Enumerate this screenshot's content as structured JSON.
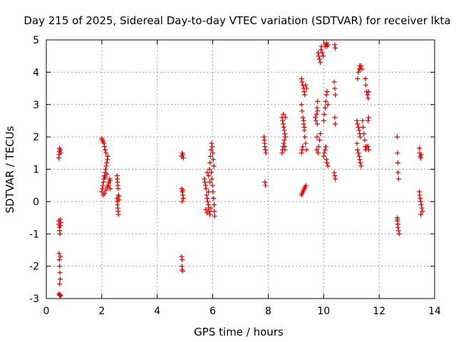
{
  "chart_data": {
    "type": "scatter",
    "title": "Day 215 of 2025, Sidereal Day-to-day VTEC variation (SDTVAR) for receiver lkta",
    "xlabel": "GPS time / hours",
    "ylabel": "SDTVAR / TECUs",
    "xlim": [
      0,
      14
    ],
    "ylim": [
      -3,
      5
    ],
    "xticks": [
      0,
      2,
      4,
      6,
      8,
      10,
      12,
      14
    ],
    "yticks": [
      -3,
      -2,
      -1,
      0,
      1,
      2,
      3,
      4,
      5
    ],
    "grid": true,
    "marker": "+",
    "color": "#e00000",
    "series": [
      {
        "name": "SDTVAR",
        "points": [
          [
            0.45,
            1.35
          ],
          [
            0.46,
            1.45
          ],
          [
            0.47,
            1.55
          ],
          [
            0.48,
            1.65
          ],
          [
            0.5,
            1.6
          ],
          [
            0.52,
            1.5
          ],
          [
            0.45,
            -0.6
          ],
          [
            0.46,
            -0.7
          ],
          [
            0.47,
            -0.8
          ],
          [
            0.48,
            -0.9
          ],
          [
            0.49,
            -1.0
          ],
          [
            0.5,
            -0.75
          ],
          [
            0.52,
            -0.65
          ],
          [
            0.5,
            -0.55
          ],
          [
            0.46,
            -1.6
          ],
          [
            0.47,
            -1.8
          ],
          [
            0.48,
            -2.0
          ],
          [
            0.49,
            -2.2
          ],
          [
            0.5,
            -2.4
          ],
          [
            0.51,
            -1.7
          ],
          [
            0.48,
            -2.55
          ],
          [
            0.45,
            -2.85
          ],
          [
            0.48,
            -2.9
          ],
          [
            0.5,
            -2.88
          ],
          [
            0.52,
            -2.92
          ],
          [
            2.0,
            1.95
          ],
          [
            2.02,
            1.9
          ],
          [
            2.05,
            1.85
          ],
          [
            2.08,
            1.8
          ],
          [
            2.1,
            1.7
          ],
          [
            2.12,
            1.6
          ],
          [
            2.15,
            1.5
          ],
          [
            2.0,
            0.3
          ],
          [
            2.02,
            0.4
          ],
          [
            2.04,
            0.5
          ],
          [
            2.06,
            0.6
          ],
          [
            2.08,
            0.7
          ],
          [
            2.1,
            0.8
          ],
          [
            2.12,
            0.9
          ],
          [
            2.14,
            1.0
          ],
          [
            2.16,
            1.1
          ],
          [
            2.18,
            1.2
          ],
          [
            2.2,
            1.3
          ],
          [
            2.22,
            1.4
          ],
          [
            2.24,
            0.5
          ],
          [
            2.26,
            0.6
          ],
          [
            2.28,
            0.7
          ],
          [
            2.3,
            0.4
          ],
          [
            2.05,
            0.2
          ],
          [
            2.1,
            0.25
          ],
          [
            2.15,
            0.35
          ],
          [
            2.2,
            0.45
          ],
          [
            2.25,
            0.55
          ],
          [
            2.3,
            0.65
          ],
          [
            2.18,
            0.85
          ],
          [
            2.12,
            0.75
          ],
          [
            2.55,
            0.8
          ],
          [
            2.56,
            0.7
          ],
          [
            2.57,
            0.6
          ],
          [
            2.58,
            0.5
          ],
          [
            2.59,
            0.4
          ],
          [
            2.6,
            0.2
          ],
          [
            2.55,
            0.1
          ],
          [
            2.56,
            0.0
          ],
          [
            2.57,
            -0.1
          ],
          [
            2.58,
            -0.2
          ],
          [
            2.59,
            -0.3
          ],
          [
            2.6,
            -0.4
          ],
          [
            2.62,
            0.15
          ],
          [
            2.61,
            0.05
          ],
          [
            4.88,
            1.4
          ],
          [
            4.9,
            1.5
          ],
          [
            4.92,
            1.45
          ],
          [
            4.94,
            1.35
          ],
          [
            4.88,
            0.4
          ],
          [
            4.9,
            0.3
          ],
          [
            4.92,
            0.2
          ],
          [
            4.94,
            0.1
          ],
          [
            4.9,
            0.0
          ],
          [
            4.92,
            0.35
          ],
          [
            4.88,
            -1.7
          ],
          [
            4.9,
            -1.8
          ],
          [
            4.89,
            -2.0
          ],
          [
            4.9,
            -2.1
          ],
          [
            4.91,
            -2.15
          ],
          [
            5.7,
            0.7
          ],
          [
            5.72,
            0.6
          ],
          [
            5.74,
            0.5
          ],
          [
            5.76,
            0.4
          ],
          [
            5.78,
            0.2
          ],
          [
            5.8,
            0.1
          ],
          [
            5.82,
            0.0
          ],
          [
            5.84,
            -0.1
          ],
          [
            5.86,
            -0.2
          ],
          [
            5.88,
            -0.3
          ],
          [
            5.9,
            -0.4
          ],
          [
            5.75,
            -0.25
          ],
          [
            5.8,
            -0.35
          ],
          [
            5.85,
            0.3
          ],
          [
            5.88,
            1.0
          ],
          [
            5.9,
            1.2
          ],
          [
            5.92,
            1.4
          ],
          [
            5.94,
            1.6
          ],
          [
            5.96,
            1.8
          ],
          [
            5.98,
            1.7
          ],
          [
            6.0,
            1.5
          ],
          [
            6.02,
            1.3
          ],
          [
            6.04,
            1.1
          ],
          [
            5.95,
            0.9
          ],
          [
            5.97,
            0.7
          ],
          [
            5.99,
            0.5
          ],
          [
            6.01,
            0.3
          ],
          [
            6.03,
            0.1
          ],
          [
            6.05,
            -0.1
          ],
          [
            6.06,
            -0.3
          ],
          [
            6.07,
            -0.45
          ],
          [
            5.85,
            0.8
          ],
          [
            5.8,
            0.9
          ],
          [
            5.9,
            0.6
          ],
          [
            5.93,
            -0.2
          ],
          [
            7.85,
            2.0
          ],
          [
            7.86,
            1.9
          ],
          [
            7.87,
            1.8
          ],
          [
            7.88,
            1.7
          ],
          [
            7.9,
            1.6
          ],
          [
            7.92,
            1.5
          ],
          [
            7.88,
            0.6
          ],
          [
            7.9,
            0.5
          ],
          [
            8.5,
            2.6
          ],
          [
            8.52,
            2.5
          ],
          [
            8.54,
            2.4
          ],
          [
            8.56,
            2.3
          ],
          [
            8.58,
            2.2
          ],
          [
            8.6,
            2.1
          ],
          [
            8.62,
            2.0
          ],
          [
            8.5,
            1.5
          ],
          [
            8.52,
            1.6
          ],
          [
            8.54,
            1.7
          ],
          [
            8.56,
            1.8
          ],
          [
            8.58,
            1.9
          ],
          [
            8.6,
            1.7
          ],
          [
            8.62,
            2.6
          ],
          [
            8.55,
            2.7
          ],
          [
            8.6,
            1.6
          ],
          [
            9.2,
            3.8
          ],
          [
            9.22,
            3.7
          ],
          [
            9.25,
            3.6
          ],
          [
            9.28,
            3.5
          ],
          [
            9.3,
            3.4
          ],
          [
            9.32,
            3.3
          ],
          [
            9.35,
            3.6
          ],
          [
            9.38,
            3.5
          ],
          [
            9.2,
            3.0
          ],
          [
            9.22,
            2.8
          ],
          [
            9.25,
            2.6
          ],
          [
            9.28,
            2.4
          ],
          [
            9.3,
            2.2
          ],
          [
            9.32,
            2.0
          ],
          [
            9.35,
            1.8
          ],
          [
            9.38,
            1.6
          ],
          [
            9.2,
            1.5
          ],
          [
            9.22,
            1.6
          ],
          [
            9.25,
            1.7
          ],
          [
            9.28,
            2.5
          ],
          [
            9.3,
            2.3
          ],
          [
            9.2,
            0.2
          ],
          [
            9.22,
            0.25
          ],
          [
            9.25,
            0.3
          ],
          [
            9.28,
            0.35
          ],
          [
            9.3,
            0.4
          ],
          [
            9.33,
            0.45
          ],
          [
            9.36,
            0.5
          ],
          [
            9.75,
            1.6
          ],
          [
            9.76,
            2.0
          ],
          [
            9.77,
            2.4
          ],
          [
            9.78,
            2.8
          ],
          [
            9.8,
            1.5
          ],
          [
            9.82,
            1.7
          ],
          [
            9.85,
            1.9
          ],
          [
            9.88,
            2.1
          ],
          [
            9.7,
            2.6
          ],
          [
            9.72,
            2.5
          ],
          [
            9.74,
            2.7
          ],
          [
            9.76,
            2.9
          ],
          [
            9.78,
            3.1
          ],
          [
            9.8,
            4.6
          ],
          [
            9.82,
            4.5
          ],
          [
            9.85,
            4.4
          ],
          [
            9.88,
            4.3
          ],
          [
            9.9,
            4.7
          ],
          [
            9.92,
            4.8
          ],
          [
            9.95,
            4.6
          ],
          [
            9.98,
            4.5
          ],
          [
            10.0,
            2.5
          ],
          [
            10.02,
            2.7
          ],
          [
            10.05,
            2.9
          ],
          [
            10.08,
            3.1
          ],
          [
            10.1,
            3.3
          ],
          [
            10.12,
            3.4
          ],
          [
            10.15,
            3.0
          ],
          [
            10.0,
            1.4
          ],
          [
            10.02,
            1.5
          ],
          [
            10.05,
            1.6
          ],
          [
            10.08,
            1.7
          ],
          [
            10.1,
            1.3
          ],
          [
            10.12,
            1.2
          ],
          [
            10.15,
            1.1
          ],
          [
            10.05,
            4.8
          ],
          [
            10.08,
            4.85
          ],
          [
            10.1,
            4.9
          ],
          [
            10.12,
            4.8
          ],
          [
            10.15,
            4.85
          ],
          [
            10.4,
            4.85
          ],
          [
            10.42,
            4.75
          ],
          [
            10.38,
            3.7
          ],
          [
            10.4,
            3.5
          ],
          [
            10.42,
            3.3
          ],
          [
            10.4,
            2.6
          ],
          [
            10.42,
            2.4
          ],
          [
            10.38,
            0.9
          ],
          [
            10.4,
            0.8
          ],
          [
            10.42,
            0.7
          ],
          [
            11.2,
            2.5
          ],
          [
            11.22,
            2.4
          ],
          [
            11.25,
            2.3
          ],
          [
            11.28,
            2.2
          ],
          [
            11.3,
            2.1
          ],
          [
            11.32,
            2.0
          ],
          [
            11.2,
            1.8
          ],
          [
            11.22,
            1.6
          ],
          [
            11.25,
            1.5
          ],
          [
            11.28,
            1.4
          ],
          [
            11.3,
            1.3
          ],
          [
            11.32,
            1.2
          ],
          [
            11.35,
            1.1
          ],
          [
            11.25,
            4.0
          ],
          [
            11.28,
            4.1
          ],
          [
            11.3,
            4.2
          ],
          [
            11.32,
            4.1
          ],
          [
            11.35,
            4.2
          ],
          [
            11.38,
            4.1
          ],
          [
            11.22,
            3.8
          ],
          [
            11.4,
            2.5
          ],
          [
            11.42,
            2.3
          ],
          [
            11.45,
            2.1
          ],
          [
            11.48,
            1.9
          ],
          [
            11.5,
            1.7
          ],
          [
            11.52,
            1.6
          ],
          [
            11.55,
            1.7
          ],
          [
            11.5,
            3.8
          ],
          [
            11.52,
            3.6
          ],
          [
            11.55,
            3.4
          ],
          [
            11.58,
            3.3
          ],
          [
            11.6,
            3.2
          ],
          [
            11.62,
            3.4
          ],
          [
            11.6,
            2.5
          ],
          [
            11.62,
            2.6
          ],
          [
            11.6,
            1.7
          ],
          [
            11.62,
            1.6
          ],
          [
            12.65,
            2.0
          ],
          [
            12.66,
            1.5
          ],
          [
            12.67,
            1.2
          ],
          [
            12.68,
            0.9
          ],
          [
            12.7,
            0.7
          ],
          [
            12.65,
            -0.5
          ],
          [
            12.66,
            -0.6
          ],
          [
            12.67,
            -0.7
          ],
          [
            12.68,
            -0.8
          ],
          [
            12.7,
            -0.9
          ],
          [
            12.72,
            -1.0
          ],
          [
            12.66,
            -0.55
          ],
          [
            13.45,
            1.65
          ],
          [
            13.46,
            1.5
          ],
          [
            13.48,
            1.4
          ],
          [
            13.5,
            1.35
          ],
          [
            13.52,
            1.45
          ],
          [
            13.45,
            0.3
          ],
          [
            13.46,
            0.2
          ],
          [
            13.48,
            0.1
          ],
          [
            13.5,
            0.0
          ],
          [
            13.52,
            -0.1
          ],
          [
            13.54,
            -0.2
          ],
          [
            13.56,
            -0.3
          ],
          [
            13.5,
            -0.4
          ]
        ]
      }
    ]
  }
}
